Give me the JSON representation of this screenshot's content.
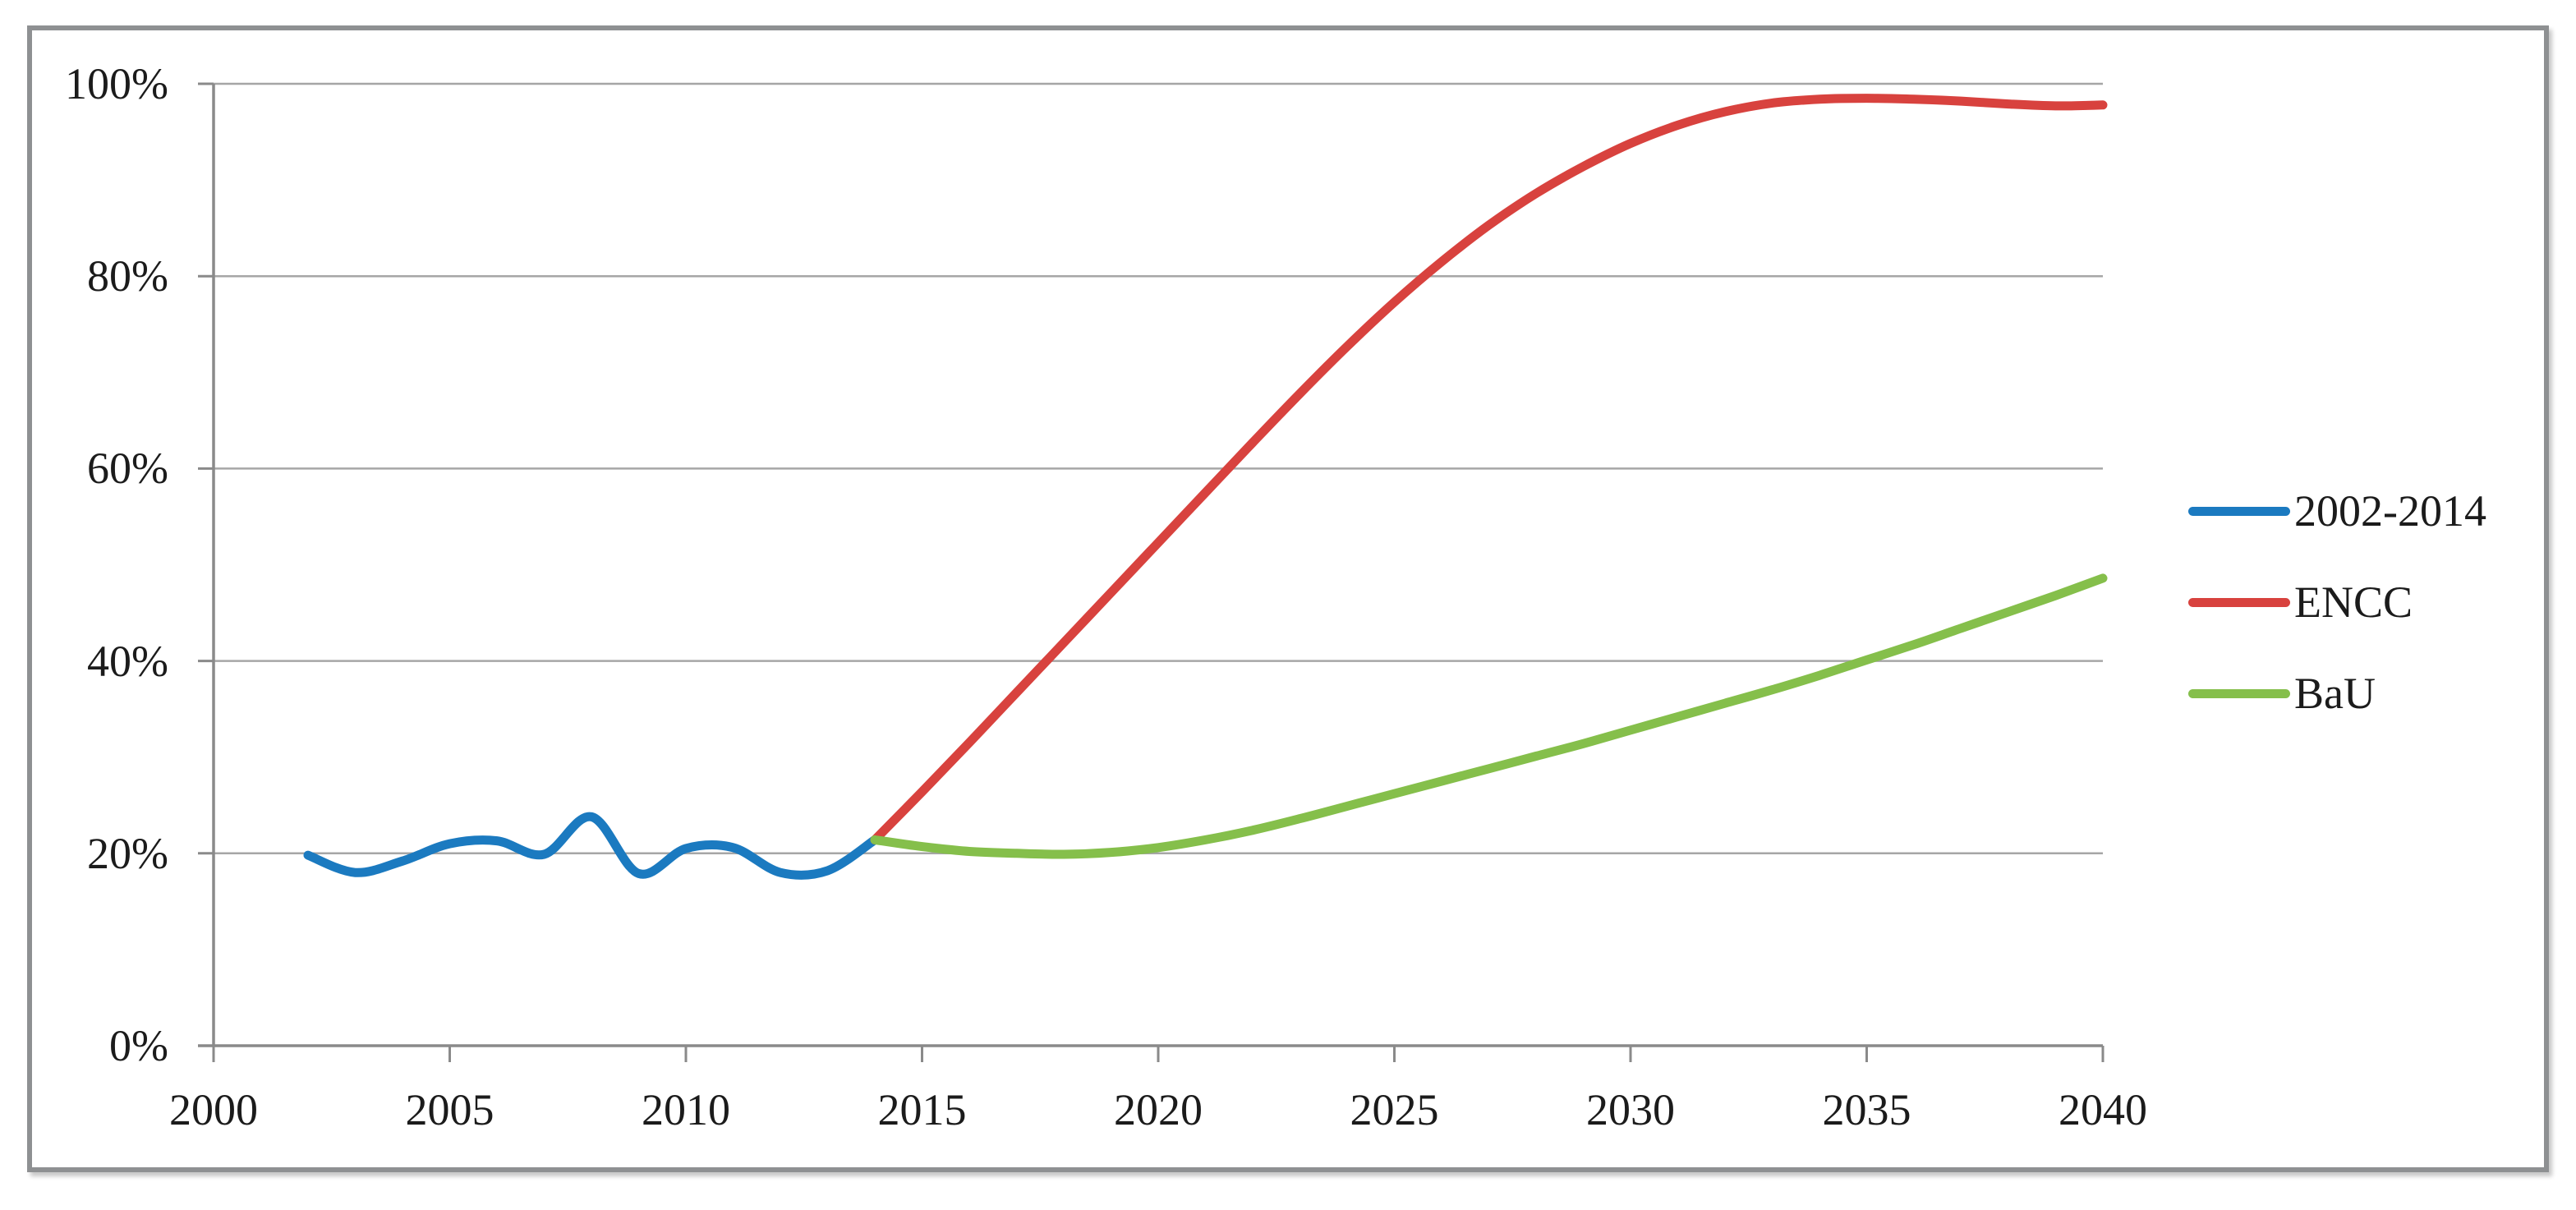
{
  "figure": {
    "background": "#FFFFFF",
    "border_color": "#8E9092",
    "text_color": "#1B1B1B",
    "grid_color": "#A6A6A6",
    "axis_color": "#8A8A8A"
  },
  "legend": {
    "entries": [
      {
        "label": "2002-2014",
        "color": "#1B7AC0"
      },
      {
        "label": "ENCC",
        "color": "#D8423E"
      },
      {
        "label": "BaU",
        "color": "#85BF4B"
      }
    ]
  },
  "chart_data": {
    "type": "line",
    "title": "",
    "xlabel": "",
    "ylabel": "",
    "x_range": [
      2000,
      2040
    ],
    "ylim": [
      0,
      100
    ],
    "grid": "horizontal",
    "smooth_lines": true,
    "legend_position": "right",
    "x_ticks": [
      {
        "value": 2000,
        "label": "2000"
      },
      {
        "value": 2005,
        "label": "2005"
      },
      {
        "value": 2010,
        "label": "2010"
      },
      {
        "value": 2015,
        "label": "2015"
      },
      {
        "value": 2020,
        "label": "2020"
      },
      {
        "value": 2025,
        "label": "2025"
      },
      {
        "value": 2030,
        "label": "2030"
      },
      {
        "value": 2035,
        "label": "2035"
      },
      {
        "value": 2040,
        "label": "2040"
      }
    ],
    "y_ticks": [
      {
        "value": 0,
        "label": "0%"
      },
      {
        "value": 20,
        "label": "20%"
      },
      {
        "value": 40,
        "label": "40%"
      },
      {
        "value": 60,
        "label": "60%"
      },
      {
        "value": 80,
        "label": "80%"
      },
      {
        "value": 100,
        "label": "100%"
      }
    ],
    "series": [
      {
        "name": "2002-2014",
        "color": "#1B7AC0",
        "unit": "%",
        "x": [
          2002,
          2003,
          2004,
          2005,
          2006,
          2007,
          2008,
          2009,
          2010,
          2011,
          2012,
          2013,
          2014
        ],
        "y": [
          19.8,
          18.0,
          19.2,
          21.0,
          21.3,
          19.9,
          23.8,
          17.9,
          20.5,
          20.6,
          18.0,
          18.2,
          21.4
        ]
      },
      {
        "name": "ENCC",
        "color": "#D8423E",
        "unit": "%",
        "x": [
          2014,
          2015,
          2016,
          2017,
          2018,
          2019,
          2020,
          2021,
          2022,
          2023,
          2024,
          2025,
          2026,
          2027,
          2028,
          2029,
          2030,
          2031,
          2032,
          2033,
          2034,
          2035,
          2036,
          2037,
          2038,
          2039,
          2040
        ],
        "y": [
          21.4,
          26.4,
          31.5,
          36.7,
          41.9,
          47.1,
          52.3,
          57.5,
          62.7,
          67.8,
          72.7,
          77.3,
          81.5,
          85.3,
          88.6,
          91.4,
          93.8,
          95.7,
          97.1,
          98.0,
          98.4,
          98.5,
          98.4,
          98.2,
          97.9,
          97.7,
          97.8
        ]
      },
      {
        "name": "BaU",
        "color": "#85BF4B",
        "unit": "%",
        "x": [
          2014,
          2015,
          2016,
          2017,
          2018,
          2019,
          2020,
          2021,
          2022,
          2023,
          2024,
          2025,
          2026,
          2027,
          2028,
          2029,
          2030,
          2031,
          2032,
          2033,
          2034,
          2035,
          2036,
          2037,
          2038,
          2039,
          2040
        ],
        "y": [
          21.4,
          20.7,
          20.2,
          20.0,
          19.9,
          20.1,
          20.6,
          21.4,
          22.4,
          23.6,
          24.9,
          26.2,
          27.5,
          28.8,
          30.1,
          31.4,
          32.8,
          34.2,
          35.6,
          37.0,
          38.5,
          40.1,
          41.7,
          43.4,
          45.1,
          46.8,
          48.6
        ]
      }
    ]
  }
}
